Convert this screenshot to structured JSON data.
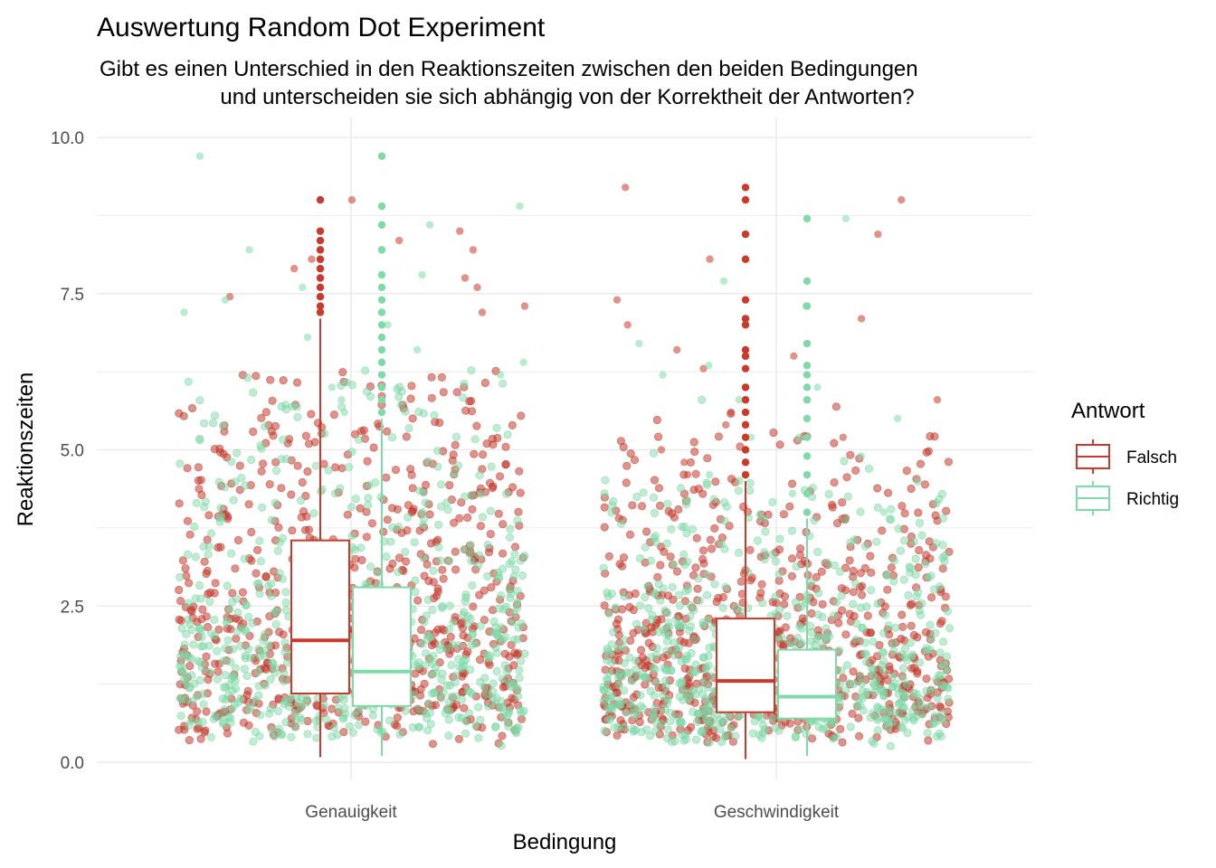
{
  "chart_data": {
    "type": "boxplot with jittered points",
    "title": "Auswertung Random Dot Experiment",
    "subtitle_lines": [
      "Gibt es einen Unterschied in den Reaktionszeiten zwischen den beiden Bedingungen",
      "und unterscheiden sie sich abhängig von der Korrektheit der Antworten?"
    ],
    "xlabel": "Bedingung",
    "ylabel": "Reaktionszeiten",
    "categories": [
      "Genauigkeit",
      "Geschwindigkeit"
    ],
    "ylim": [
      0,
      10
    ],
    "y_ticks": [
      0.0,
      2.5,
      5.0,
      7.5,
      10.0
    ],
    "y_tick_labels": [
      "0.0",
      "2.5",
      "5.0",
      "7.5",
      "10.0"
    ],
    "grid": true,
    "legend": {
      "title": "Antwort",
      "position": "right",
      "entries": [
        {
          "label": "Falsch",
          "color": "#c83a2b"
        },
        {
          "label": "Richtig",
          "color": "#7fdaa8"
        }
      ]
    },
    "series": [
      {
        "name": "Falsch",
        "color": "#c83a2b",
        "boxes": [
          {
            "category": "Genauigkeit",
            "min": 0.08,
            "q1": 1.1,
            "median": 1.95,
            "q3": 3.55,
            "whisker_high": 7.1,
            "outliers": [
              7.2,
              7.3,
              7.45,
              7.6,
              7.75,
              7.9,
              8.05,
              8.2,
              8.35,
              8.5,
              9.0
            ]
          },
          {
            "category": "Geschwindigkeit",
            "min": 0.05,
            "q1": 0.8,
            "median": 1.3,
            "q3": 2.3,
            "whisker_high": 4.5,
            "outliers": [
              4.6,
              4.8,
              5.0,
              5.2,
              5.4,
              5.6,
              5.8,
              6.0,
              6.3,
              6.5,
              6.6,
              7.0,
              7.1,
              7.4,
              8.05,
              8.45,
              9.0,
              9.2
            ]
          }
        ]
      },
      {
        "name": "Richtig",
        "color": "#7fdaa8",
        "boxes": [
          {
            "category": "Genauigkeit",
            "min": 0.1,
            "q1": 0.9,
            "median": 1.45,
            "q3": 2.8,
            "whisker_high": 5.5,
            "outliers": [
              5.6,
              5.8,
              6.0,
              6.2,
              6.4,
              6.6,
              6.8,
              7.0,
              7.2,
              7.4,
              7.6,
              7.8,
              8.2,
              8.6,
              8.9,
              9.7
            ]
          },
          {
            "category": "Geschwindigkeit",
            "min": 0.1,
            "q1": 0.7,
            "median": 1.05,
            "q3": 1.8,
            "whisker_high": 3.9,
            "outliers": [
              4.0,
              4.3,
              4.6,
              4.9,
              5.2,
              5.5,
              5.8,
              6.0,
              6.2,
              6.35,
              6.7,
              7.3,
              7.7,
              8.7
            ]
          }
        ]
      }
    ]
  }
}
